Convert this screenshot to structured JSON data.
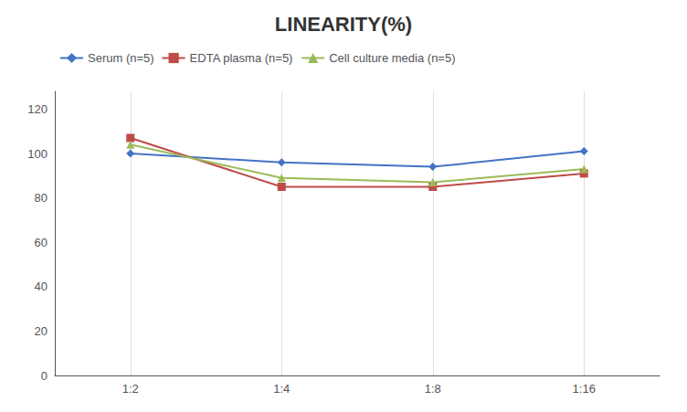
{
  "chart_data": {
    "type": "line",
    "title": "LINEARITY(%)",
    "categories": [
      "1:2",
      "1:4",
      "1:8",
      "1:16"
    ],
    "series": [
      {
        "name": "Serum (n=5)",
        "color": "#4472C4",
        "marker": "diamond",
        "values": [
          100,
          96,
          94,
          101
        ]
      },
      {
        "name": "EDTA plasma (n=5)",
        "color": "#BE4B48",
        "marker": "square",
        "values": [
          107,
          85,
          85,
          91
        ]
      },
      {
        "name": "Cell culture media (n=5)",
        "color": "#9BBB59",
        "marker": "triangle",
        "values": [
          104,
          89,
          87,
          93
        ]
      }
    ],
    "ylim": [
      0,
      128
    ],
    "yticks": [
      0,
      20,
      40,
      60,
      80,
      100,
      120
    ],
    "grid": "x",
    "legend": "upper left"
  }
}
